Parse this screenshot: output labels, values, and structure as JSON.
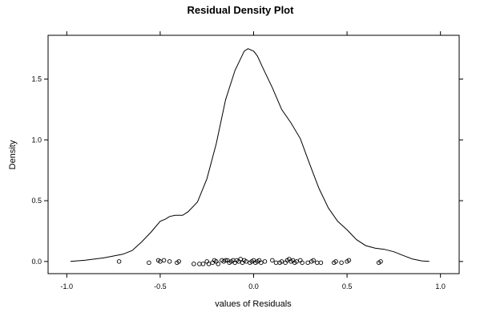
{
  "chart_data": {
    "type": "line",
    "title": "Residual Density Plot",
    "xlabel": "values of Residuals",
    "ylabel": "Density",
    "xlim": [
      -1.1,
      1.1
    ],
    "ylim": [
      -0.1,
      1.86
    ],
    "x_ticks": [
      -1.0,
      -0.5,
      0.0,
      0.5,
      1.0
    ],
    "x_tick_labels": [
      "-1.0",
      "-0.5",
      "0.0",
      "0.5",
      "1.0"
    ],
    "y_ticks": [
      0.0,
      0.5,
      1.0,
      1.5
    ],
    "y_tick_labels": [
      "0.0",
      "0.5",
      "1.0",
      "1.5"
    ],
    "grid": false,
    "series": [
      {
        "kind": "density-line",
        "points": [
          [
            -0.98,
            0.0
          ],
          [
            -0.9,
            0.01
          ],
          [
            -0.8,
            0.03
          ],
          [
            -0.7,
            0.06
          ],
          [
            -0.65,
            0.09
          ],
          [
            -0.6,
            0.16
          ],
          [
            -0.55,
            0.24
          ],
          [
            -0.5,
            0.33
          ],
          [
            -0.47,
            0.35
          ],
          [
            -0.45,
            0.37
          ],
          [
            -0.42,
            0.38
          ],
          [
            -0.38,
            0.38
          ],
          [
            -0.35,
            0.41
          ],
          [
            -0.3,
            0.49
          ],
          [
            -0.25,
            0.68
          ],
          [
            -0.2,
            0.97
          ],
          [
            -0.15,
            1.33
          ],
          [
            -0.1,
            1.57
          ],
          [
            -0.05,
            1.73
          ],
          [
            -0.03,
            1.75
          ],
          [
            0.0,
            1.73
          ],
          [
            0.02,
            1.69
          ],
          [
            0.05,
            1.59
          ],
          [
            0.1,
            1.43
          ],
          [
            0.15,
            1.25
          ],
          [
            0.2,
            1.14
          ],
          [
            0.25,
            1.01
          ],
          [
            0.3,
            0.8
          ],
          [
            0.35,
            0.6
          ],
          [
            0.4,
            0.44
          ],
          [
            0.45,
            0.33
          ],
          [
            0.5,
            0.26
          ],
          [
            0.55,
            0.18
          ],
          [
            0.6,
            0.13
          ],
          [
            0.65,
            0.11
          ],
          [
            0.7,
            0.1
          ],
          [
            0.75,
            0.08
          ],
          [
            0.8,
            0.05
          ],
          [
            0.85,
            0.02
          ],
          [
            0.9,
            0.005
          ],
          [
            0.94,
            0.0
          ]
        ]
      },
      {
        "kind": "rug-points",
        "points": [
          [
            -0.72,
            0.0
          ],
          [
            -0.56,
            -0.01
          ],
          [
            -0.51,
            0.01
          ],
          [
            -0.5,
            0.0
          ],
          [
            -0.48,
            0.01
          ],
          [
            -0.45,
            0.0
          ],
          [
            -0.41,
            -0.01
          ],
          [
            -0.4,
            0.0
          ],
          [
            -0.32,
            -0.02
          ],
          [
            -0.29,
            -0.02
          ],
          [
            -0.27,
            -0.02
          ],
          [
            -0.25,
            0.0
          ],
          [
            -0.24,
            -0.02
          ],
          [
            -0.22,
            -0.01
          ],
          [
            -0.21,
            0.01
          ],
          [
            -0.2,
            0.0
          ],
          [
            -0.19,
            -0.02
          ],
          [
            -0.17,
            0.01
          ],
          [
            -0.16,
            0.0
          ],
          [
            -0.15,
            0.01
          ],
          [
            -0.14,
            0.01
          ],
          [
            -0.13,
            -0.01
          ],
          [
            -0.12,
            0.0
          ],
          [
            -0.11,
            0.01
          ],
          [
            -0.1,
            -0.01
          ],
          [
            -0.09,
            0.01
          ],
          [
            -0.08,
            0.0
          ],
          [
            -0.07,
            0.02
          ],
          [
            -0.06,
            -0.01
          ],
          [
            -0.05,
            0.01
          ],
          [
            -0.04,
            0.0
          ],
          [
            -0.02,
            -0.01
          ],
          [
            -0.01,
            0.0
          ],
          [
            0.0,
            0.01
          ],
          [
            0.01,
            -0.01
          ],
          [
            0.02,
            0.0
          ],
          [
            0.03,
            0.01
          ],
          [
            0.04,
            -0.01
          ],
          [
            0.06,
            0.0
          ],
          [
            0.1,
            0.01
          ],
          [
            0.12,
            -0.01
          ],
          [
            0.14,
            -0.01
          ],
          [
            0.15,
            0.0
          ],
          [
            0.17,
            -0.01
          ],
          [
            0.18,
            0.01
          ],
          [
            0.19,
            0.02
          ],
          [
            0.2,
            0.0
          ],
          [
            0.21,
            0.01
          ],
          [
            0.22,
            -0.01
          ],
          [
            0.23,
            0.0
          ],
          [
            0.25,
            0.01
          ],
          [
            0.26,
            -0.01
          ],
          [
            0.29,
            -0.01
          ],
          [
            0.31,
            0.0
          ],
          [
            0.32,
            0.01
          ],
          [
            0.34,
            -0.01
          ],
          [
            0.36,
            -0.01
          ],
          [
            0.43,
            -0.01
          ],
          [
            0.44,
            0.0
          ],
          [
            0.47,
            -0.01
          ],
          [
            0.5,
            0.0
          ],
          [
            0.51,
            0.01
          ],
          [
            0.67,
            -0.01
          ],
          [
            0.68,
            0.0
          ]
        ]
      }
    ]
  }
}
